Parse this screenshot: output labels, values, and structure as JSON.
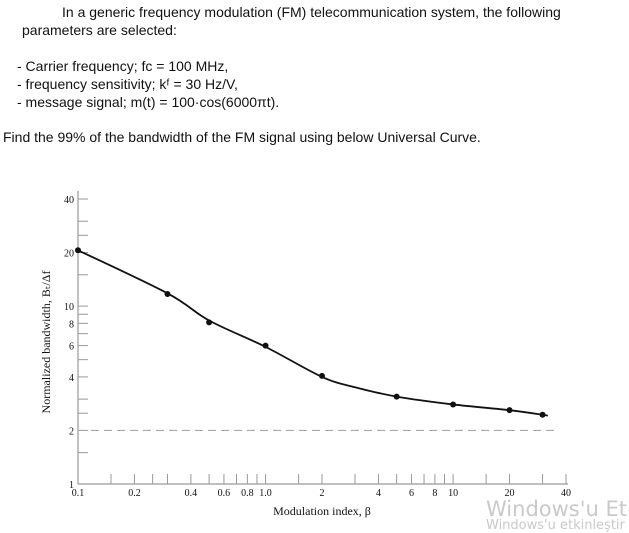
{
  "problem": {
    "intro_line1": "In a generic frequency modulation (FM) telecommunication system, the following",
    "intro_line2": "parameters are selected:",
    "params": [
      "- Carrier frequency; fᴄ = 100 MHz,",
      "- frequency sensitivity; kᶠ = 30 Hz/V,",
      "- message signal; m(t) = 100·cos(6000πt)."
    ],
    "question": "Find the 99% of the bandwidth of the FM signal using below Universal Curve."
  },
  "chart_data": {
    "type": "line",
    "title": "",
    "xlabel": "Modulation index, β",
    "ylabel": "Normalized bandwidth, Bₜ/Δf",
    "xscale": "log",
    "yscale": "log",
    "xlim": [
      0.1,
      40
    ],
    "ylim": [
      1,
      40
    ],
    "x_ticks": [
      0.1,
      0.15,
      0.2,
      0.25,
      0.3,
      0.4,
      0.5,
      0.6,
      0.7,
      0.8,
      0.9,
      1.0,
      1.5,
      2,
      3,
      4,
      5,
      6,
      7,
      8,
      9,
      10,
      15,
      20,
      30,
      40
    ],
    "x_tick_labels": [
      {
        "v": 0.1,
        "t": "0.1"
      },
      {
        "v": 0.2,
        "t": "0.2"
      },
      {
        "v": 0.4,
        "t": "0.4"
      },
      {
        "v": 0.6,
        "t": "0.6"
      },
      {
        "v": 0.8,
        "t": "0.8"
      },
      {
        "v": 1.0,
        "t": "1.0"
      },
      {
        "v": 2,
        "t": "2"
      },
      {
        "v": 4,
        "t": "4"
      },
      {
        "v": 6,
        "t": "6"
      },
      {
        "v": 8,
        "t": "8"
      },
      {
        "v": 10,
        "t": "10"
      },
      {
        "v": 20,
        "t": "20"
      },
      {
        "v": 40,
        "t": "40"
      }
    ],
    "y_ticks": [
      1,
      1.5,
      2,
      2.5,
      3,
      4,
      5,
      6,
      7,
      8,
      9,
      10,
      15,
      20,
      25,
      30,
      40
    ],
    "y_tick_labels": [
      {
        "v": 1,
        "t": "1"
      },
      {
        "v": 2,
        "t": "2"
      },
      {
        "v": 4,
        "t": "4"
      },
      {
        "v": 6,
        "t": "6"
      },
      {
        "v": 8,
        "t": "8"
      },
      {
        "v": 10,
        "t": "10"
      },
      {
        "v": 20,
        "t": "20"
      },
      {
        "v": 40,
        "t": "40"
      }
    ],
    "points": {
      "x": [
        0.1,
        0.3,
        0.5,
        1.0,
        2,
        5,
        10,
        20,
        30
      ],
      "y": [
        20.6,
        11.7,
        8.1,
        6.0,
        4.05,
        3.1,
        2.8,
        2.6,
        2.45
      ]
    },
    "curve": {
      "x": [
        0.1,
        0.3,
        0.5,
        1.0,
        2,
        3,
        5,
        10,
        20,
        30,
        32
      ],
      "y": [
        20.6,
        11.8,
        8.3,
        5.9,
        4.0,
        3.5,
        3.1,
        2.8,
        2.6,
        2.45,
        2.42
      ]
    },
    "reference_line": {
      "y": 2,
      "style": "dashed",
      "color": "#aaaaaa"
    },
    "grid": false,
    "legend": "none"
  },
  "watermark": {
    "line1": "Windows'u Etkir",
    "line2": "Windows'u etkinleştir"
  }
}
